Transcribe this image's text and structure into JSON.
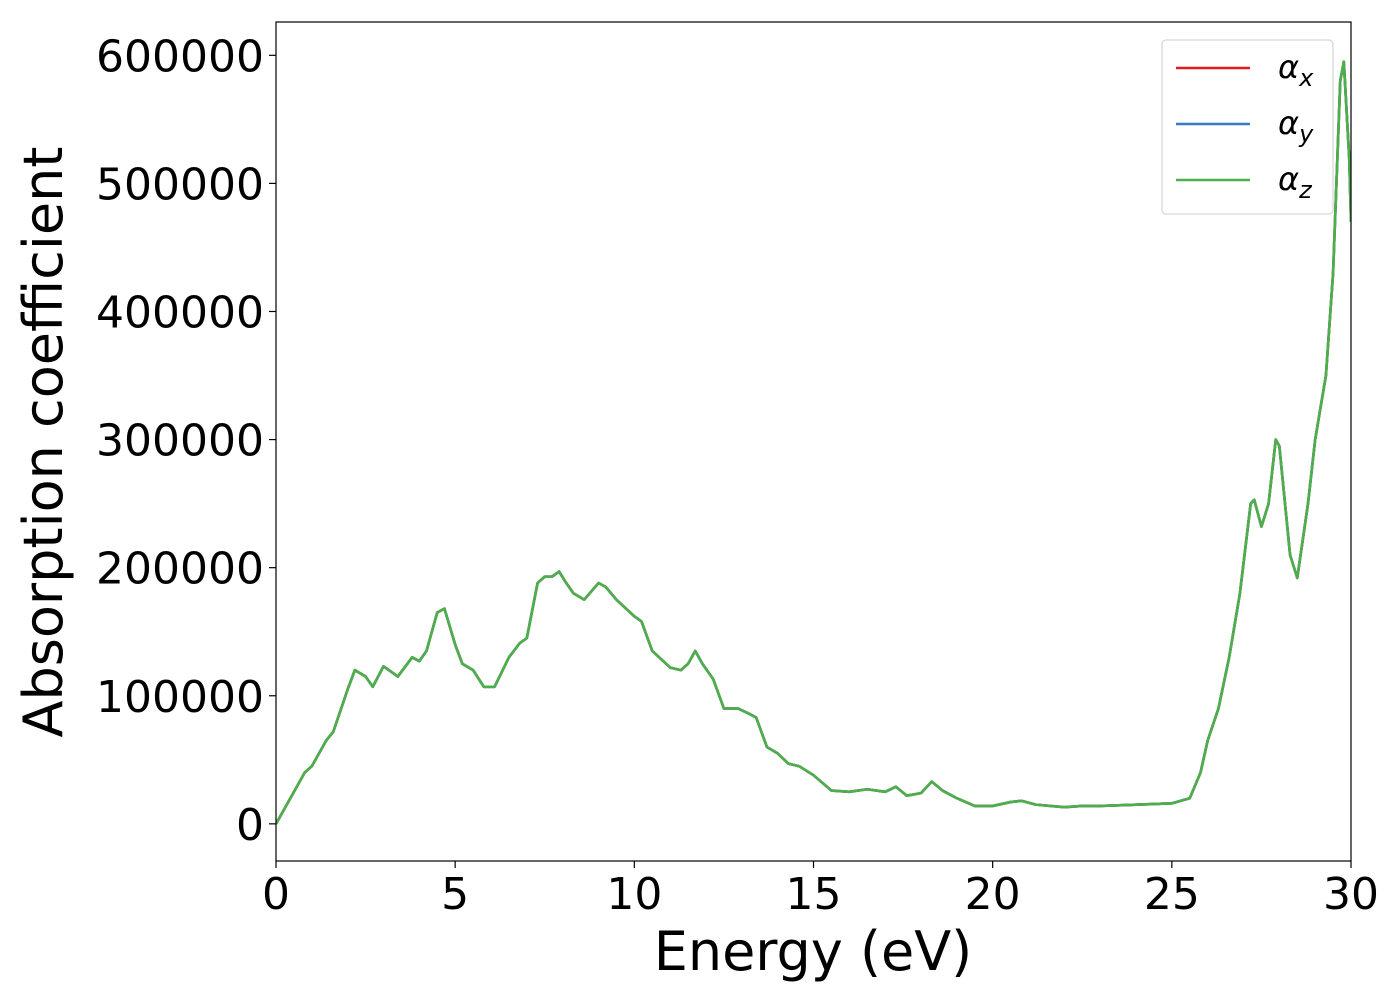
{
  "chart_data": {
    "type": "line",
    "x_label": "Energy (eV)",
    "y_label": "Absorption coefficient",
    "x": [
      0,
      0.5,
      0.8,
      1.0,
      1.4,
      1.6,
      2.0,
      2.2,
      2.5,
      2.7,
      3.0,
      3.3,
      3.4,
      3.8,
      4.0,
      4.2,
      4.5,
      4.7,
      5.0,
      5.2,
      5.5,
      5.8,
      6.1,
      6.5,
      6.8,
      7.0,
      7.3,
      7.5,
      7.7,
      7.9,
      8.1,
      8.3,
      8.6,
      9.0,
      9.2,
      9.5,
      10.0,
      10.2,
      10.5,
      11.0,
      11.3,
      11.5,
      11.7,
      11.9,
      12.2,
      12.5,
      12.9,
      13.2,
      13.4,
      13.7,
      14.0,
      14.3,
      14.6,
      15.0,
      15.5,
      16.0,
      16.5,
      17.0,
      17.3,
      17.6,
      18.0,
      18.3,
      18.6,
      19.0,
      19.5,
      20.0,
      20.5,
      20.8,
      21.2,
      22.0,
      22.5,
      23.0,
      24.0,
      25.0,
      25.5,
      25.8,
      26.0,
      26.3,
      26.6,
      26.9,
      27.2,
      27.3,
      27.5,
      27.7,
      27.9,
      28.0,
      28.3,
      28.5,
      28.8,
      29.0,
      29.3,
      29.5,
      29.7,
      29.8,
      29.95,
      30.0
    ],
    "series": [
      {
        "name": "αx",
        "color": "#e41a1c",
        "values": [
          0,
          25000,
          40000,
          45000,
          65000,
          72000,
          105000,
          120000,
          115000,
          107000,
          123000,
          117000,
          115000,
          130000,
          127000,
          135000,
          165000,
          168000,
          140000,
          125000,
          120000,
          107000,
          107000,
          130000,
          141000,
          145000,
          188000,
          193000,
          193000,
          197000,
          188000,
          180000,
          175000,
          188000,
          185000,
          175000,
          162000,
          158000,
          135000,
          122000,
          120000,
          125000,
          135000,
          125000,
          113000,
          90000,
          90000,
          86000,
          83000,
          60000,
          55000,
          47000,
          45000,
          38000,
          26000,
          25000,
          27000,
          25000,
          29000,
          22000,
          24000,
          33000,
          26000,
          20000,
          14000,
          14000,
          17000,
          18000,
          15000,
          13000,
          14000,
          14000,
          15000,
          16000,
          20000,
          40000,
          65000,
          90000,
          130000,
          180000,
          250000,
          253000,
          232000,
          250000,
          300000,
          295000,
          210000,
          192000,
          250000,
          300000,
          350000,
          430000,
          580000,
          595000,
          520000,
          470000
        ]
      },
      {
        "name": "αy",
        "color": "#377eb8",
        "values": [
          0,
          25000,
          40000,
          45000,
          65000,
          72000,
          105000,
          120000,
          115000,
          107000,
          123000,
          117000,
          115000,
          130000,
          127000,
          135000,
          165000,
          168000,
          140000,
          125000,
          120000,
          107000,
          107000,
          130000,
          141000,
          145000,
          188000,
          193000,
          193000,
          197000,
          188000,
          180000,
          175000,
          188000,
          185000,
          175000,
          162000,
          158000,
          135000,
          122000,
          120000,
          125000,
          135000,
          125000,
          113000,
          90000,
          90000,
          86000,
          83000,
          60000,
          55000,
          47000,
          45000,
          38000,
          26000,
          25000,
          27000,
          25000,
          29000,
          22000,
          24000,
          33000,
          26000,
          20000,
          14000,
          14000,
          17000,
          18000,
          15000,
          13000,
          14000,
          14000,
          15000,
          16000,
          20000,
          40000,
          65000,
          90000,
          130000,
          180000,
          250000,
          253000,
          232000,
          250000,
          300000,
          295000,
          210000,
          192000,
          250000,
          300000,
          350000,
          430000,
          580000,
          595000,
          520000,
          470000
        ]
      },
      {
        "name": "αz",
        "color": "#4daf4a",
        "values": [
          0,
          25000,
          40000,
          45000,
          65000,
          72000,
          105000,
          120000,
          115000,
          107000,
          123000,
          117000,
          115000,
          130000,
          127000,
          135000,
          165000,
          168000,
          140000,
          125000,
          120000,
          107000,
          107000,
          130000,
          141000,
          145000,
          188000,
          193000,
          193000,
          197000,
          188000,
          180000,
          175000,
          188000,
          185000,
          175000,
          162000,
          158000,
          135000,
          122000,
          120000,
          125000,
          135000,
          125000,
          113000,
          90000,
          90000,
          86000,
          83000,
          60000,
          55000,
          47000,
          45000,
          38000,
          26000,
          25000,
          27000,
          25000,
          29000,
          22000,
          24000,
          33000,
          26000,
          20000,
          14000,
          14000,
          17000,
          18000,
          15000,
          13000,
          14000,
          14000,
          15000,
          16000,
          20000,
          40000,
          65000,
          90000,
          130000,
          180000,
          250000,
          253000,
          232000,
          250000,
          300000,
          295000,
          210000,
          192000,
          250000,
          300000,
          350000,
          430000,
          580000,
          595000,
          520000,
          470000
        ]
      }
    ],
    "xlim": [
      0,
      30
    ],
    "xticks": [
      0,
      5,
      10,
      15,
      20,
      25,
      30
    ],
    "ylim": [
      -29000,
      626000
    ],
    "yticks": [
      0,
      100000,
      200000,
      300000,
      400000,
      500000,
      600000
    ],
    "legend": "upper right"
  }
}
